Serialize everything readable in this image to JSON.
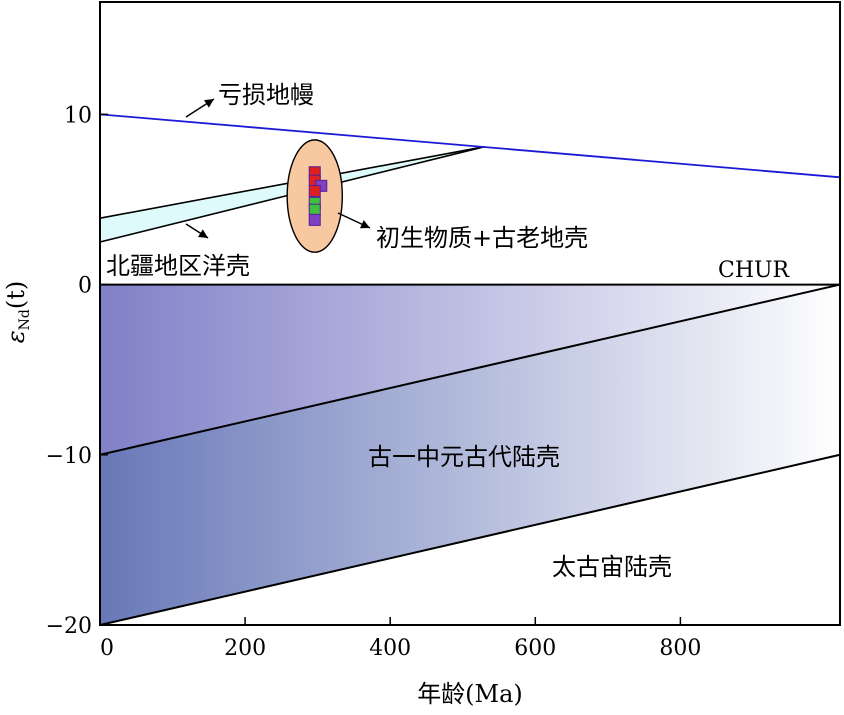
{
  "chart_data": {
    "type": "area",
    "xlabel": "年龄(Ma)",
    "ylabel_prefix": "ε",
    "ylabel_sub": "Nd",
    "ylabel_suffix": "(t)",
    "xlim": [
      0,
      1020
    ],
    "ylim": [
      -20,
      16.6
    ],
    "x_ticks": [
      0,
      200,
      400,
      600,
      800
    ],
    "y_ticks": [
      -20,
      -10,
      0,
      10
    ],
    "x_tick_labels": [
      "0",
      "200",
      "400",
      "600",
      "800"
    ],
    "y_tick_labels": [
      "−20",
      "−10",
      "0",
      "10"
    ],
    "series": [
      {
        "name": "亏损地幔",
        "x": [
          0,
          1020
        ],
        "y": [
          10,
          6.3
        ],
        "color": "#1a1ad6"
      },
      {
        "name": "CHUR",
        "x": [
          0,
          1020
        ],
        "y": [
          0,
          0
        ],
        "color": "#000000"
      }
    ],
    "regions": [
      {
        "name": "北疆地区洋壳",
        "upper": [
          [
            0,
            3.9
          ],
          [
            530,
            8.1
          ]
        ],
        "lower": [
          [
            0,
            2.5
          ],
          [
            530,
            8.1
          ]
        ],
        "fill": "#dffafa"
      },
      {
        "name": "古一中元古代陆壳",
        "upper": [
          [
            0,
            0
          ],
          [
            1020,
            0
          ]
        ],
        "lower": [
          [
            0,
            -10
          ],
          [
            1020,
            0
          ]
        ],
        "fill": "#8080c8"
      },
      {
        "name": "太古宙陆壳",
        "upper": [
          [
            0,
            -10
          ],
          [
            1020,
            0
          ]
        ],
        "lower": [
          [
            0,
            -20
          ],
          [
            1020,
            -10
          ]
        ],
        "fill": "#7888c0"
      }
    ],
    "annotations": [
      {
        "text": "亏损地幔",
        "target": "亏损地幔"
      },
      {
        "text": "北疆地区洋壳",
        "target": "北疆地区洋壳"
      },
      {
        "text": "初生物质+古老地壳",
        "target": "sample-ellipse"
      },
      {
        "text": "CHUR",
        "target": "CHUR"
      },
      {
        "text": "古一中元古代陆壳"
      },
      {
        "text": "太古宙陆壳"
      }
    ],
    "ellipse": {
      "cx": 296,
      "cy": 5.2,
      "rx": 38,
      "ry": 3.3,
      "fill": "#f8c8a0"
    },
    "samples": [
      {
        "x": 296,
        "y": 6.6,
        "color": "#e02020"
      },
      {
        "x": 296,
        "y": 6.1,
        "color": "#e02020"
      },
      {
        "x": 305,
        "y": 5.8,
        "color": "#8040c0"
      },
      {
        "x": 296,
        "y": 5.5,
        "color": "#e02020"
      },
      {
        "x": 296,
        "y": 4.8,
        "color": "#40c040"
      },
      {
        "x": 296,
        "y": 4.4,
        "color": "#40c040"
      },
      {
        "x": 296,
        "y": 3.8,
        "color": "#8040c0"
      }
    ]
  }
}
